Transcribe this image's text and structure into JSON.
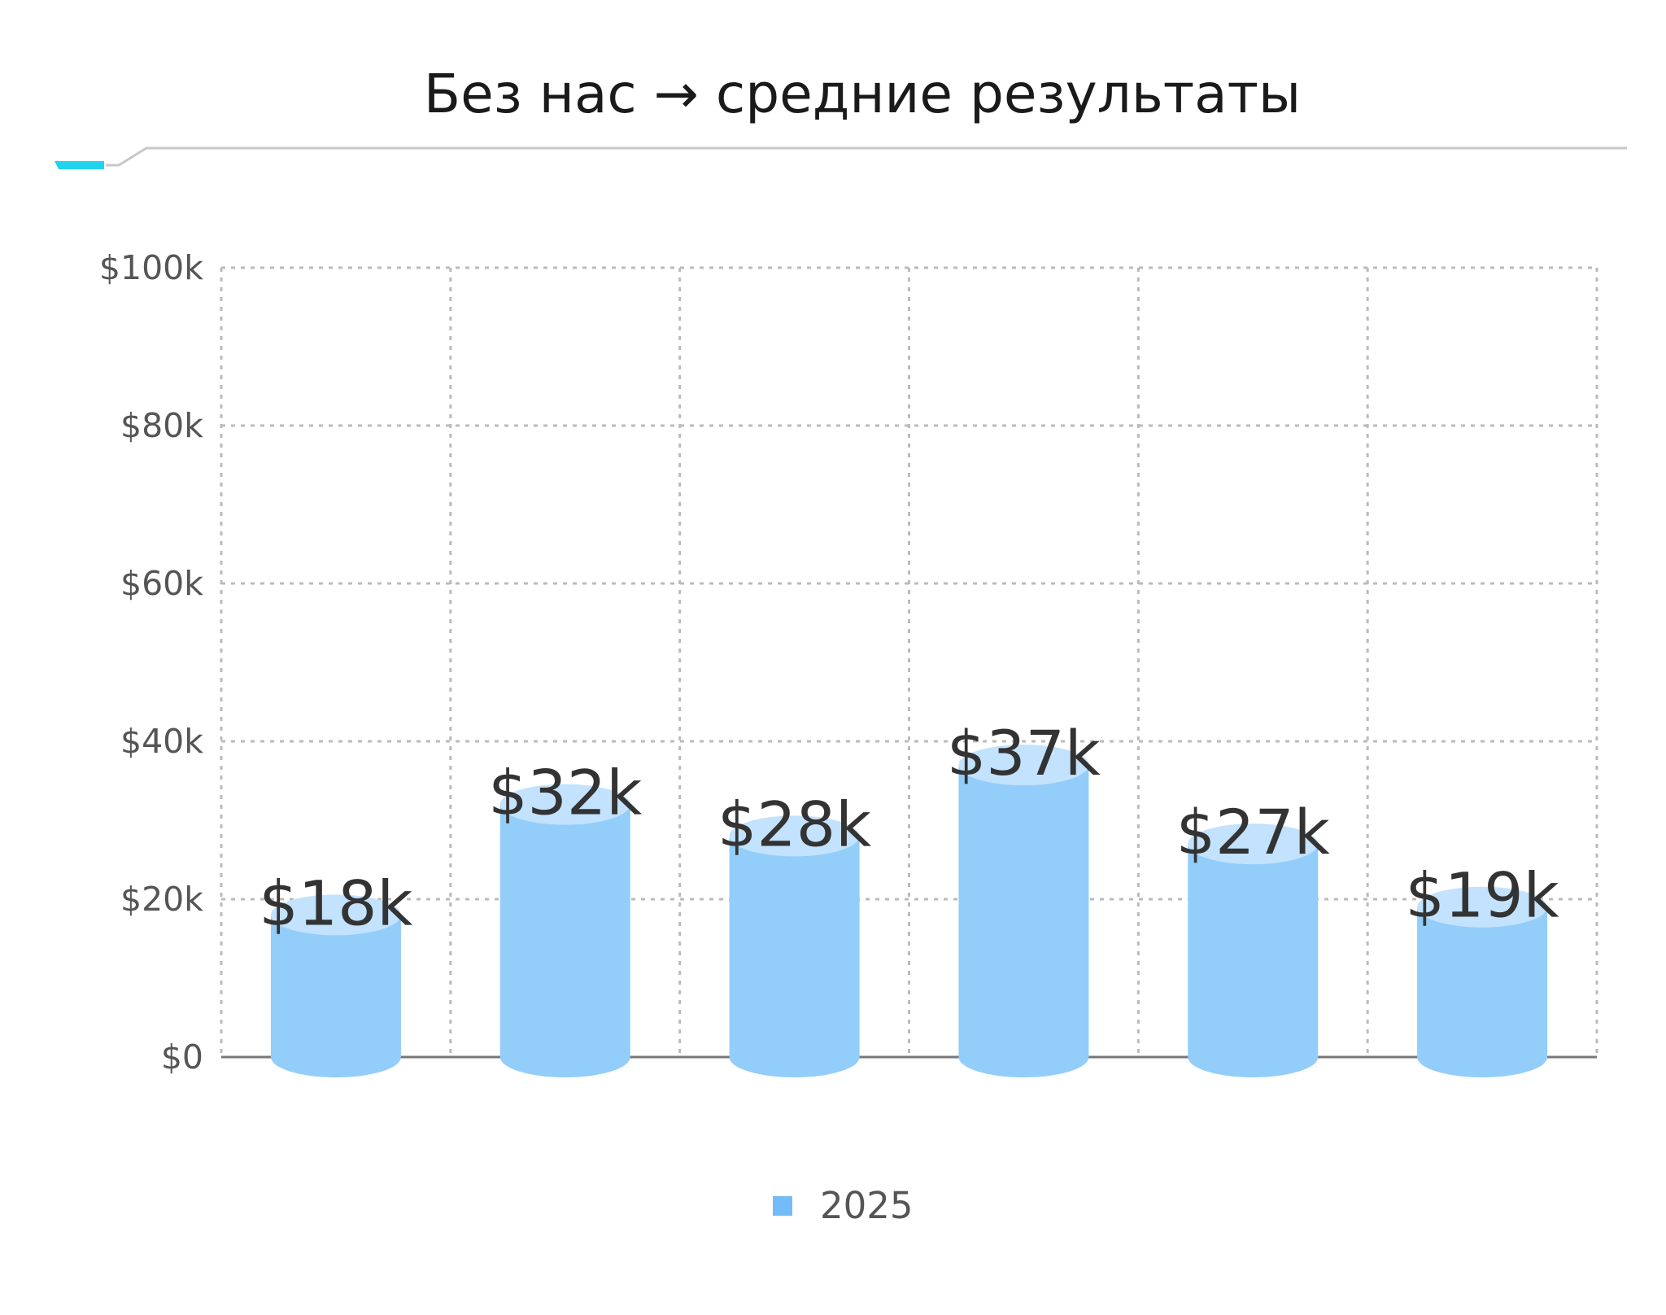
{
  "title": "Без нас → средние результаты",
  "colors": {
    "accent": "#22d3ee",
    "bar_body": "#93cdfa",
    "bar_top": "#c2e2fd",
    "legend_swatch": "#74bcf8",
    "grid": "#bbbbbb",
    "rule": "#c8c8c8"
  },
  "chart_data": {
    "type": "bar",
    "style": "cylinder",
    "categories": [
      "",
      "",
      "",
      "",
      "",
      ""
    ],
    "series": [
      {
        "name": "2025",
        "values": [
          18,
          32,
          28,
          37,
          27,
          19
        ]
      }
    ],
    "data_labels": [
      "$18k",
      "$32k",
      "$28k",
      "$37k",
      "$27k",
      "$19k"
    ],
    "y_ticks": [
      {
        "value": 0,
        "label": "$0"
      },
      {
        "value": 20,
        "label": "$20k"
      },
      {
        "value": 40,
        "label": "$40k"
      },
      {
        "value": 60,
        "label": "$60k"
      },
      {
        "value": 80,
        "label": "$80k"
      },
      {
        "value": 100,
        "label": "$100k"
      }
    ],
    "ylim": [
      0,
      100
    ],
    "grid": true,
    "legend_position": "bottom-center",
    "xlabel": "",
    "ylabel": ""
  }
}
